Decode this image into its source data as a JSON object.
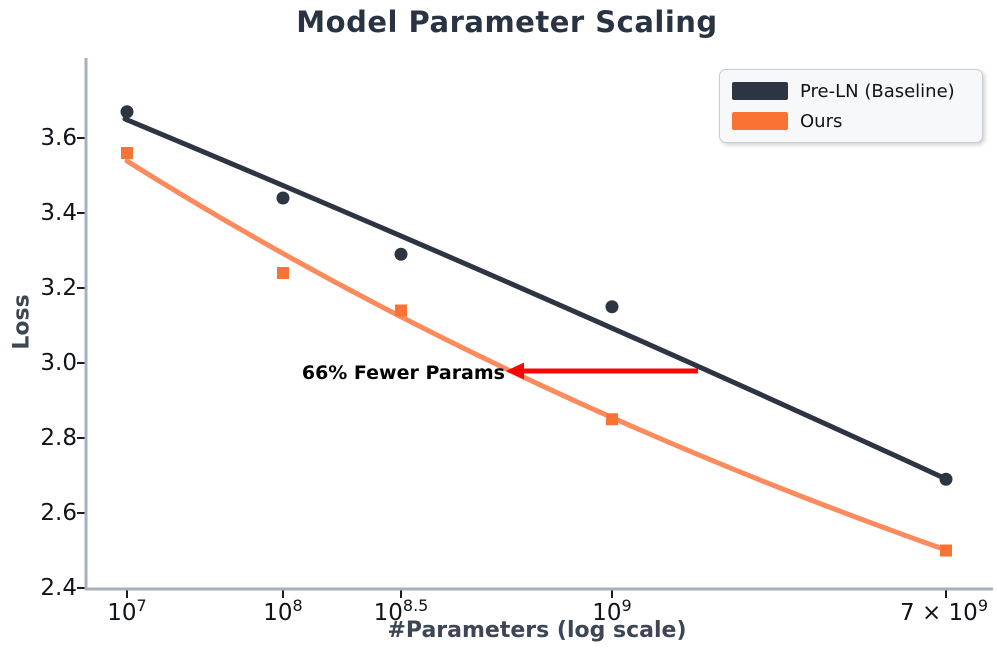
{
  "chart_data": {
    "type": "scatter",
    "title": "Model Parameter Scaling",
    "xlabel": "#Parameters (log scale)",
    "ylabel": "Loss",
    "x_scale": "log",
    "grid": false,
    "categories": [
      "1e7",
      "1e8",
      "1e8.5",
      "1e9",
      "7e9"
    ],
    "x_ticks": [
      {
        "prefix": "",
        "base": "10",
        "exp": "7"
      },
      {
        "prefix": "",
        "base": "10",
        "exp": "8"
      },
      {
        "prefix": "",
        "base": "10",
        "exp": "8.5"
      },
      {
        "prefix": "",
        "base": "10",
        "exp": "9"
      },
      {
        "prefix": "7 × ",
        "base": "10",
        "exp": "9"
      }
    ],
    "y_tick_labels": [
      "3.6",
      "3.4",
      "3.2",
      "3.0",
      "2.8",
      "2.6",
      "2.4"
    ],
    "y_axis": {
      "min": 2.4,
      "max": 3.72
    },
    "series": [
      {
        "name": "Pre-LN (Baseline)",
        "marker": "circle",
        "color": "#2E3542",
        "line_color": "#2E3542",
        "values": [
          3.67,
          3.44,
          3.29,
          3.15,
          2.69
        ]
      },
      {
        "name": "Ours",
        "marker": "square",
        "color": "#F97434",
        "line_color": "#FB8A5C",
        "values": [
          3.56,
          3.24,
          3.14,
          2.85,
          2.5
        ]
      }
    ],
    "annotation": {
      "text": "66% Fewer Params",
      "arrow_color": "#F40909"
    },
    "legend": {
      "position": "upper right",
      "entries": [
        "Pre-LN (Baseline)",
        "Ours"
      ]
    },
    "colors": {
      "axis_spine": "#A8B0BC",
      "tick": "#1A1D22",
      "title": "#2A3342",
      "axis_label": "#3D4654"
    }
  }
}
